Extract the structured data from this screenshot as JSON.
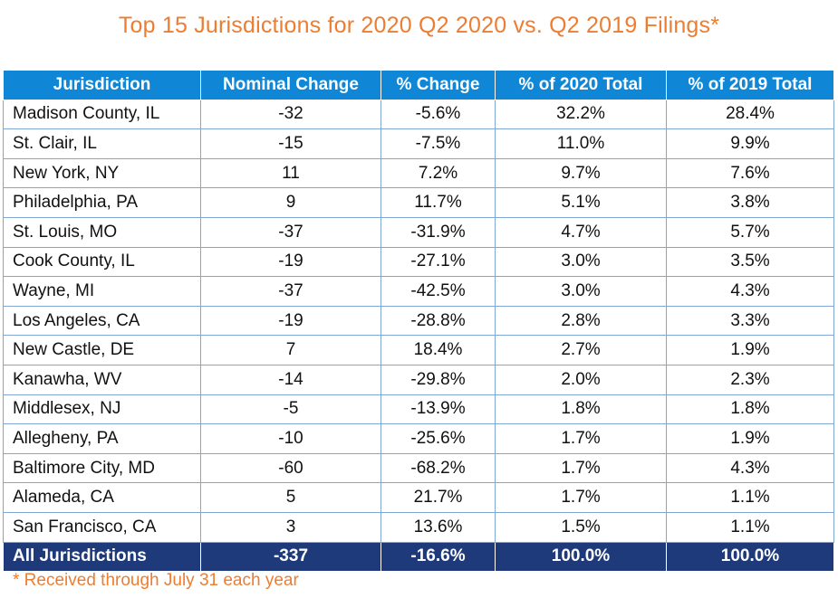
{
  "title": "Top 15 Jurisdictions for 2020 Q2 2020 vs. Q2 2019 Filings*",
  "footnote": "* Received through July 31 each year",
  "colors": {
    "title": "#ed7d31",
    "header_bg": "#0f86d6",
    "total_bg": "#1f3a7a"
  },
  "chart_data": {
    "type": "table",
    "title": "Top 15 Jurisdictions for 2020 Q2 2020 vs. Q2 2019 Filings*",
    "columns": [
      "Jurisdiction",
      "Nominal Change",
      "% Change",
      "% of 2020 Total",
      "% of 2019 Total"
    ],
    "rows": [
      [
        "Madison County, IL",
        "-32",
        "-5.6%",
        "32.2%",
        "28.4%"
      ],
      [
        "St. Clair, IL",
        "-15",
        "-7.5%",
        "11.0%",
        "9.9%"
      ],
      [
        "New York, NY",
        "11",
        "7.2%",
        "9.7%",
        "7.6%"
      ],
      [
        "Philadelphia, PA",
        "9",
        "11.7%",
        "5.1%",
        "3.8%"
      ],
      [
        "St. Louis, MO",
        "-37",
        "-31.9%",
        "4.7%",
        "5.7%"
      ],
      [
        "Cook County, IL",
        "-19",
        "-27.1%",
        "3.0%",
        "3.5%"
      ],
      [
        "Wayne, MI",
        "-37",
        "-42.5%",
        "3.0%",
        "4.3%"
      ],
      [
        "Los Angeles, CA",
        "-19",
        "-28.8%",
        "2.8%",
        "3.3%"
      ],
      [
        "New Castle, DE",
        "7",
        "18.4%",
        "2.7%",
        "1.9%"
      ],
      [
        "Kanawha, WV",
        "-14",
        "-29.8%",
        "2.0%",
        "2.3%"
      ],
      [
        "Middlesex, NJ",
        "-5",
        "-13.9%",
        "1.8%",
        "1.8%"
      ],
      [
        "Allegheny, PA",
        "-10",
        "-25.6%",
        "1.7%",
        "1.9%"
      ],
      [
        "Baltimore City, MD",
        "-60",
        "-68.2%",
        "1.7%",
        "4.3%"
      ],
      [
        "Alameda, CA",
        "5",
        "21.7%",
        "1.7%",
        "1.1%"
      ],
      [
        "San Francisco, CA",
        "3",
        "13.6%",
        "1.5%",
        "1.1%"
      ]
    ],
    "total": [
      "All Jurisdictions",
      "-337",
      "-16.6%",
      "100.0%",
      "100.0%"
    ]
  }
}
